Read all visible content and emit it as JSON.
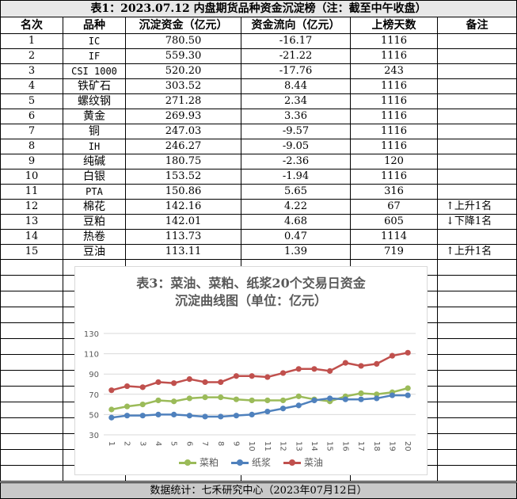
{
  "title": "表1：2023.07.12 内盘期货品种资金沉淀榜（注：截至中午收盘）",
  "headers": [
    "名次",
    "品种",
    "沉淀资金（亿元）",
    "资金流向（亿元）",
    "上榜天数",
    "备注"
  ],
  "rows": [
    {
      "rank": "1",
      "name": "IC",
      "deposit": "780.50",
      "flow": "-16.17",
      "days": "1116",
      "note": ""
    },
    {
      "rank": "2",
      "name": "IF",
      "deposit": "559.30",
      "flow": "-21.22",
      "days": "1116",
      "note": ""
    },
    {
      "rank": "3",
      "name": "CSI 1000",
      "deposit": "520.20",
      "flow": "-17.76",
      "days": "243",
      "note": ""
    },
    {
      "rank": "4",
      "name": "铁矿石",
      "deposit": "303.52",
      "flow": "8.44",
      "days": "1116",
      "note": ""
    },
    {
      "rank": "5",
      "name": "螺纹钢",
      "deposit": "271.28",
      "flow": "2.34",
      "days": "1116",
      "note": ""
    },
    {
      "rank": "6",
      "name": "黄金",
      "deposit": "269.93",
      "flow": "3.36",
      "days": "1116",
      "note": ""
    },
    {
      "rank": "7",
      "name": "铜",
      "deposit": "247.03",
      "flow": "-9.57",
      "days": "1116",
      "note": ""
    },
    {
      "rank": "8",
      "name": "IH",
      "deposit": "246.27",
      "flow": "-9.05",
      "days": "1116",
      "note": ""
    },
    {
      "rank": "9",
      "name": "纯碱",
      "deposit": "180.75",
      "flow": "-2.36",
      "days": "120",
      "note": ""
    },
    {
      "rank": "10",
      "name": "白银",
      "deposit": "153.52",
      "flow": "-1.94",
      "days": "1116",
      "note": ""
    },
    {
      "rank": "11",
      "name": "PTA",
      "deposit": "150.86",
      "flow": "5.65",
      "days": "316",
      "note": ""
    },
    {
      "rank": "12",
      "name": "棉花",
      "deposit": "142.16",
      "flow": "4.22",
      "days": "67",
      "note": "↑上升1名"
    },
    {
      "rank": "13",
      "name": "豆粕",
      "deposit": "142.01",
      "flow": "4.68",
      "days": "605",
      "note": "↓下降1名"
    },
    {
      "rank": "14",
      "name": "热卷",
      "deposit": "113.73",
      "flow": "0.47",
      "days": "1114",
      "note": ""
    },
    {
      "rank": "15",
      "name": "豆油",
      "deposit": "113.11",
      "flow": "1.39",
      "days": "719",
      "note": "↑上升1名"
    }
  ],
  "footer": "数据统计：七禾研究中心（2023年07月12日）",
  "chart_data": {
    "type": "line",
    "title_line1": "表3：菜油、菜粕、纸浆20个交易日资金",
    "title_line2": "沉淀曲线图（单位：亿元）",
    "categories": [
      "1",
      "2",
      "3",
      "4",
      "5",
      "6",
      "7",
      "8",
      "9",
      "10",
      "11",
      "12",
      "13",
      "14",
      "15",
      "16",
      "17",
      "18",
      "19",
      "20"
    ],
    "ylim": [
      30,
      130
    ],
    "yticks": [
      30,
      50,
      70,
      90,
      110,
      130
    ],
    "grid": true,
    "legend_position": "bottom",
    "series": [
      {
        "name": "菜粕",
        "color": "#9bbb59",
        "values": [
          55,
          58,
          60,
          64,
          63,
          66,
          67,
          67,
          65,
          64,
          64,
          64,
          68,
          65,
          63,
          68,
          71,
          70,
          72,
          76
        ]
      },
      {
        "name": "纸浆",
        "color": "#4f81bd",
        "values": [
          47,
          49,
          49,
          50,
          50,
          49,
          48,
          48,
          49,
          50,
          53,
          56,
          59,
          64,
          66,
          65,
          65,
          66,
          69,
          69
        ]
      },
      {
        "name": "菜油",
        "color": "#c0504d",
        "values": [
          74,
          78,
          77,
          82,
          81,
          85,
          82,
          82,
          88,
          88,
          87,
          91,
          95,
          95,
          93,
          101,
          98,
          100,
          108,
          111
        ]
      }
    ]
  }
}
